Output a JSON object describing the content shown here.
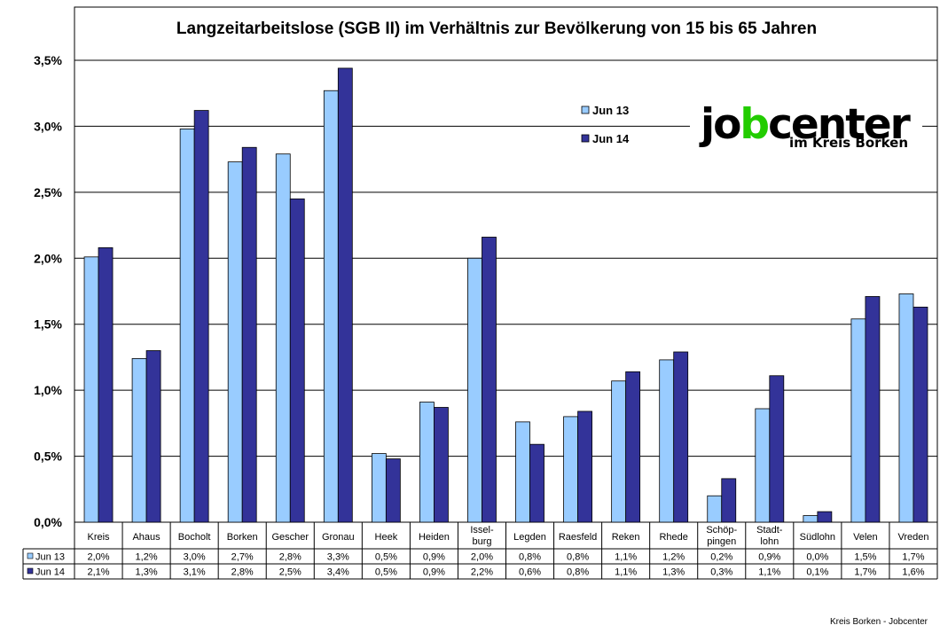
{
  "chart_data": {
    "type": "bar",
    "title": "Langzeitarbeitslose (SGB II) im Verhältnis zur Bevölkerung von 15 bis 65 Jahren",
    "xlabel": "",
    "ylabel": "",
    "ylim": [
      0,
      3.5
    ],
    "yticks": [
      "0,0%",
      "0,5%",
      "1,0%",
      "1,5%",
      "2,0%",
      "2,5%",
      "3,0%",
      "3,5%"
    ],
    "grid": true,
    "legend_position": "top-right",
    "categories": [
      "Kreis",
      "Ahaus",
      "Bocholt",
      "Borken",
      "Gescher",
      "Gronau",
      "Heek",
      "Heiden",
      "Issel-\nburg",
      "Legden",
      "Raesfeld",
      "Reken",
      "Rhede",
      "Schöp-\npingen",
      "Stadt-\nlohn",
      "Südlohn",
      "Velen",
      "Vreden"
    ],
    "series": [
      {
        "name": "Jun 13",
        "color": "#99ccff",
        "values": [
          2.01,
          1.24,
          2.98,
          2.73,
          2.79,
          3.27,
          0.52,
          0.91,
          2.0,
          0.76,
          0.8,
          1.07,
          1.23,
          0.2,
          0.86,
          0.05,
          1.54,
          1.73
        ],
        "labels": [
          "2,0%",
          "1,2%",
          "3,0%",
          "2,7%",
          "2,8%",
          "3,3%",
          "0,5%",
          "0,9%",
          "2,0%",
          "0,8%",
          "0,8%",
          "1,1%",
          "1,2%",
          "0,2%",
          "0,9%",
          "0,0%",
          "1,5%",
          "1,7%"
        ]
      },
      {
        "name": "Jun 14",
        "color": "#333399",
        "values": [
          2.08,
          1.3,
          3.12,
          2.84,
          2.45,
          3.44,
          0.48,
          0.87,
          2.16,
          0.59,
          0.84,
          1.14,
          1.29,
          0.33,
          1.11,
          0.08,
          1.71,
          1.63
        ],
        "labels": [
          "2,1%",
          "1,3%",
          "3,1%",
          "2,8%",
          "2,5%",
          "3,4%",
          "0,5%",
          "0,9%",
          "2,2%",
          "0,6%",
          "0,8%",
          "1,1%",
          "1,3%",
          "0,3%",
          "1,1%",
          "0,1%",
          "1,7%",
          "1,6%"
        ]
      }
    ]
  },
  "logo": {
    "text_left": "jo",
    "text_b": "b",
    "text_right": "center",
    "subtitle": "im Kreis Borken",
    "color_green": "#22cc00",
    "color_black": "#000000"
  },
  "footer": "Kreis Borken - Jobcenter"
}
